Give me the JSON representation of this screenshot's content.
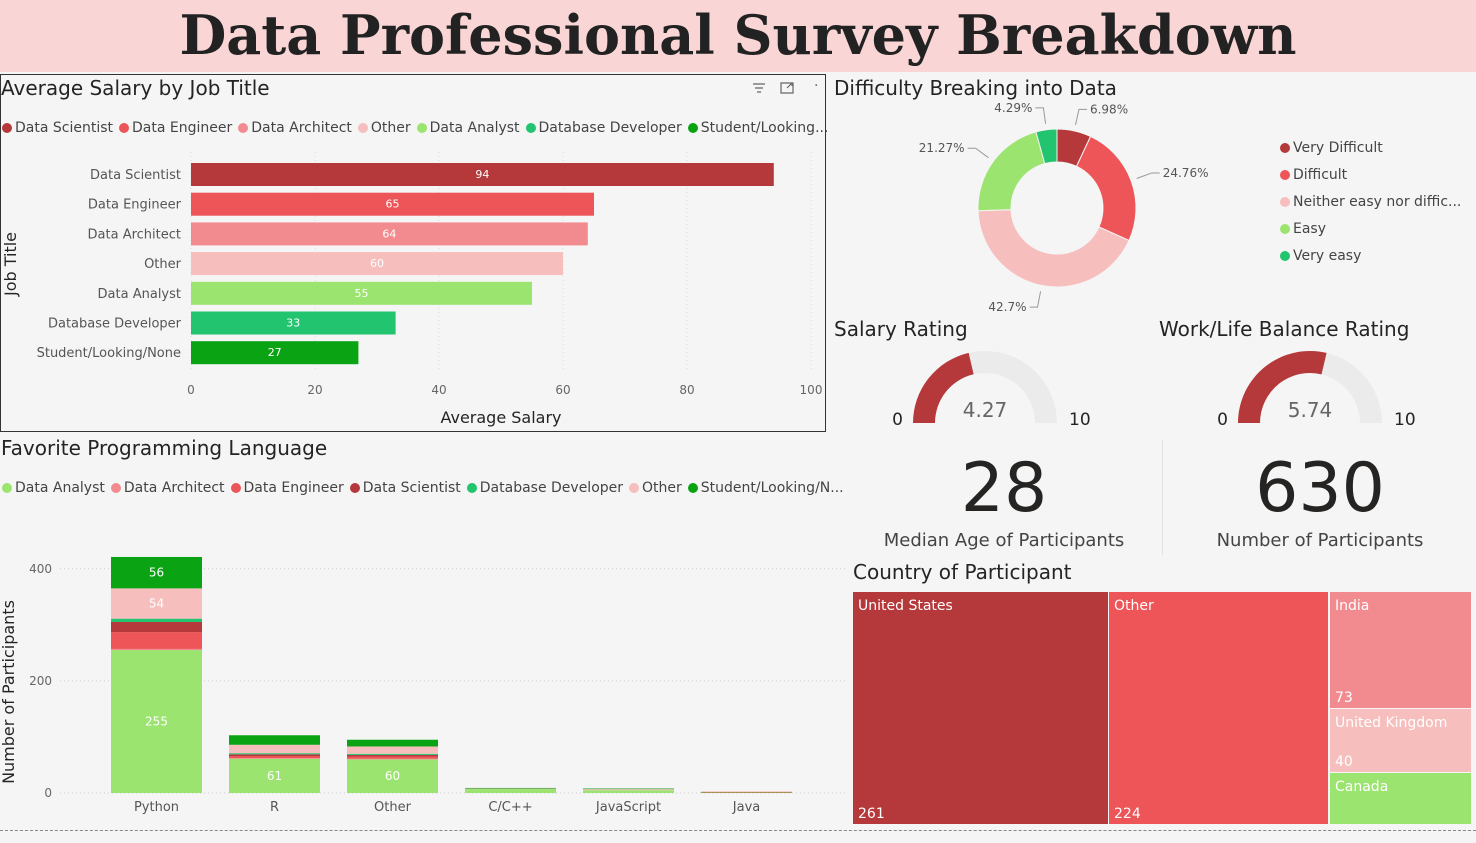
{
  "page_title": "Data Professional Survey Breakdown",
  "colors": {
    "Data Scientist": "#b5383b",
    "Data Engineer": "#ed5558",
    "Data Architect": "#f28b8f",
    "Other": "#f7bebe",
    "Data Analyst": "#9be470",
    "Database Developer": "#23c46f",
    "Student/Looking/None": "#0aa313"
  },
  "salary_chart": {
    "header_icons": [
      "filter-icon",
      "focus-mode-icon",
      "more-options-icon"
    ],
    "legend": [
      "Data Scientist",
      "Data Engineer",
      "Data Architect",
      "Other",
      "Data Analyst",
      "Database Developer",
      "Student/Looking..."
    ]
  },
  "language_chart": {
    "legend": [
      "Data Analyst",
      "Data Architect",
      "Data Engineer",
      "Data Scientist",
      "Database Developer",
      "Other",
      "Student/Looking/N..."
    ]
  },
  "difficulty_chart": {
    "legend": [
      "Very Difficult",
      "Difficult",
      "Neither easy nor diffic...",
      "Easy",
      "Very easy"
    ]
  },
  "gauges": {
    "salary": {
      "title": "Salary Rating",
      "value": 4.27,
      "value_label": "4.27",
      "min_label": "0",
      "max_label": "10",
      "min": 0,
      "max": 10
    },
    "worklife": {
      "title": "Work/Life Balance Rating",
      "value": 5.74,
      "value_label": "5.74",
      "min_label": "0",
      "max_label": "10",
      "min": 0,
      "max": 10
    }
  },
  "kpis": {
    "median_age": {
      "value": "28",
      "label": "Median Age of Participants"
    },
    "participants": {
      "value": "630",
      "label": "Number of Participants"
    }
  },
  "treemap": {
    "title": "Country of Participant",
    "items": [
      {
        "name": "United States",
        "value": "261",
        "color": "#b5383b"
      },
      {
        "name": "Other",
        "value": "224",
        "color": "#ed5558"
      },
      {
        "name": "India",
        "value": "73",
        "color": "#f28b8f"
      },
      {
        "name": "United Kingdom",
        "value": "40",
        "color": "#f7bebe"
      },
      {
        "name": "Canada",
        "value": "",
        "color": "#9be470"
      }
    ]
  },
  "chart_data": [
    {
      "type": "bar",
      "orientation": "horizontal",
      "title": "Average Salary by Job Title",
      "xlabel": "Average Salary",
      "ylabel": "Job Title",
      "categories": [
        "Data Scientist",
        "Data Engineer",
        "Data Architect",
        "Other",
        "Data Analyst",
        "Database Developer",
        "Student/Looking/None"
      ],
      "values": [
        94,
        65,
        64,
        60,
        55,
        33,
        27
      ],
      "value_labels": [
        "94",
        "65",
        "64",
        "60",
        "55",
        "33",
        "27"
      ],
      "xticks": [
        "0",
        "20",
        "40",
        "60",
        "80",
        "100"
      ],
      "xlim": [
        0,
        100
      ],
      "grid": true,
      "legend_position": "top-left"
    },
    {
      "type": "bar",
      "stacked": true,
      "title": "Favorite Programming Language",
      "xlabel": "",
      "ylabel": "Number of Participants",
      "categories": [
        "Python",
        "R",
        "Other",
        "C/C++",
        "JavaScript",
        "Java"
      ],
      "yticks": [
        "0",
        "200",
        "400"
      ],
      "ylim": [
        0,
        440
      ],
      "grid": true,
      "legend_position": "top-left",
      "series": [
        {
          "name": "Data Analyst",
          "values": [
            255,
            61,
            60,
            7,
            5,
            1
          ],
          "labels": [
            "255",
            "61",
            "60",
            "",
            "",
            ""
          ]
        },
        {
          "name": "Data Architect",
          "values": [
            2,
            1,
            1,
            0,
            0,
            0
          ],
          "labels": [
            "",
            "",
            "",
            "",
            "",
            ""
          ]
        },
        {
          "name": "Data Engineer",
          "values": [
            30,
            4,
            4,
            0,
            0,
            0
          ],
          "labels": [
            "",
            "",
            "",
            "",
            "",
            ""
          ]
        },
        {
          "name": "Data Scientist",
          "values": [
            18,
            3,
            3,
            0,
            0,
            1
          ],
          "labels": [
            "",
            "",
            "",
            "",
            "",
            ""
          ]
        },
        {
          "name": "Database Developer",
          "values": [
            6,
            2,
            2,
            0,
            0,
            0
          ],
          "labels": [
            "",
            "",
            "",
            "",
            "",
            ""
          ]
        },
        {
          "name": "Other",
          "values": [
            54,
            15,
            13,
            1,
            2,
            1
          ],
          "labels": [
            "54",
            "",
            "",
            "",
            "",
            ""
          ]
        },
        {
          "name": "Student/Looking/None",
          "values": [
            56,
            17,
            12,
            1,
            1,
            0
          ],
          "labels": [
            "56",
            "",
            "",
            "",
            "",
            ""
          ]
        }
      ]
    },
    {
      "type": "pie",
      "donut": true,
      "title": "Difficulty Breaking into Data",
      "legend_position": "right",
      "slices": [
        {
          "name": "Very Difficult",
          "value": 6.98,
          "label": "6.98%"
        },
        {
          "name": "Difficult",
          "value": 24.76,
          "label": "24.76%"
        },
        {
          "name": "Neither easy nor difficult",
          "value": 42.7,
          "label": "42.7%"
        },
        {
          "name": "Easy",
          "value": 21.27,
          "label": "21.27%"
        },
        {
          "name": "Very easy",
          "value": 4.29,
          "label": "4.29%"
        }
      ]
    }
  ]
}
